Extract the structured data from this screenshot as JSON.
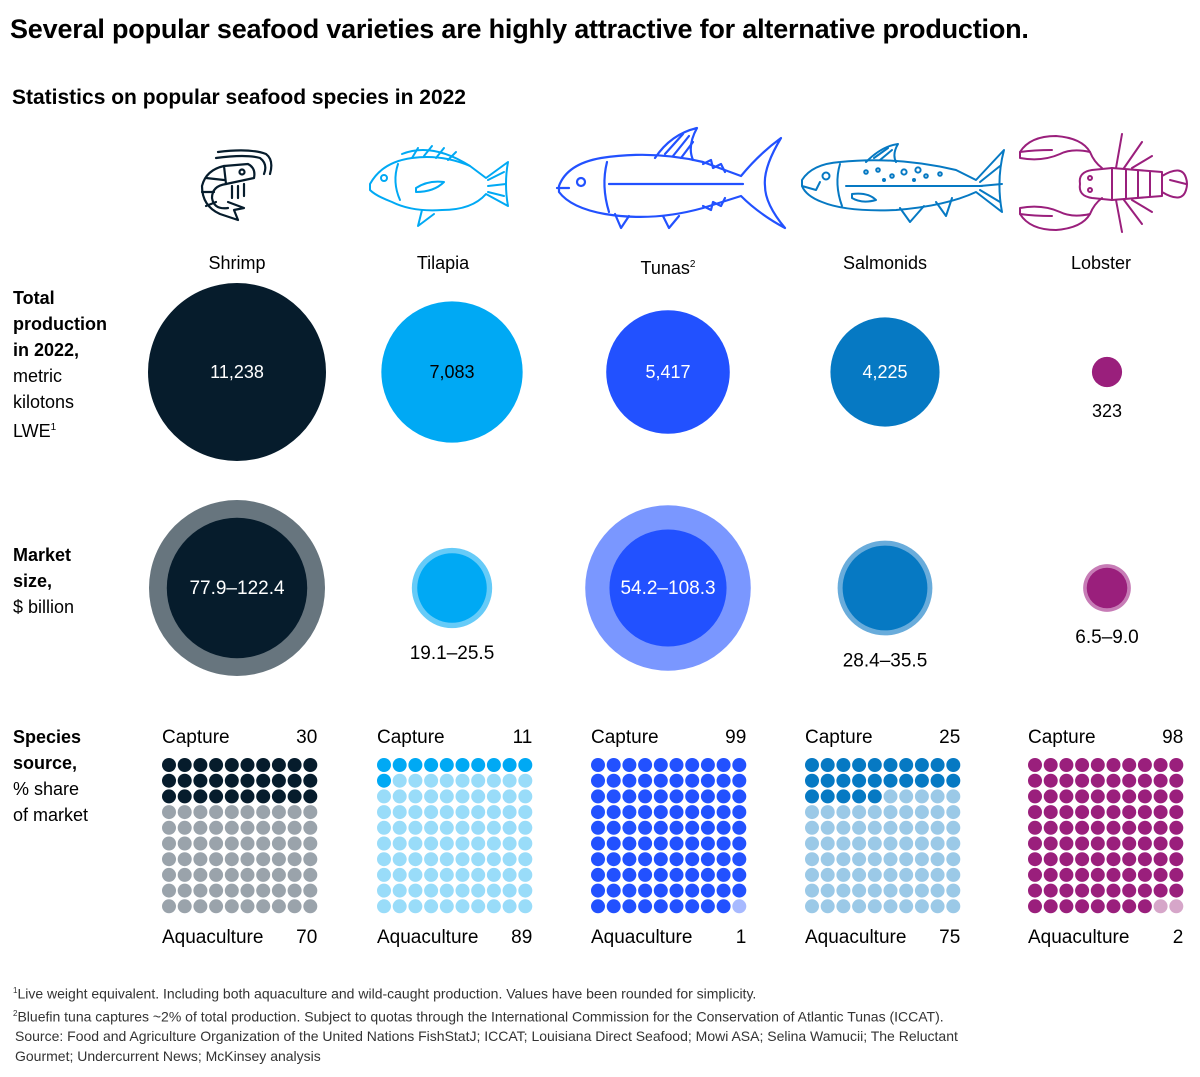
{
  "title": "Several popular seafood varieties are highly attractive for alternative production.",
  "subtitle": "Statistics on popular seafood species in 2022",
  "row_labels": {
    "production": {
      "bold": [
        "Total",
        "production",
        "in 2022,"
      ],
      "normal": [
        "metric",
        "kilotons",
        "LWE"
      ],
      "sup": "1"
    },
    "market": {
      "bold": [
        "Market",
        "size,"
      ],
      "normal": [
        "$ billion"
      ]
    },
    "source": {
      "bold": [
        "Species",
        "source,"
      ],
      "normal": [
        "% share",
        "of market"
      ]
    }
  },
  "waffle_labels": {
    "capture": "Capture",
    "aquaculture": "Aquaculture"
  },
  "chart_data": {
    "type": "bubble-and-waffle",
    "title": "Statistics on popular seafood species in 2022",
    "species": [
      {
        "name": "Shrimp",
        "sup": "",
        "icon": "shrimp-icon",
        "color": "#061c2c",
        "light_color": "#9aa3ab",
        "market_ring_color": "#67757e",
        "production_kt": 11238,
        "production_label": "11,238",
        "production_label_inside": true,
        "market_low": 77.9,
        "market_high": 122.4,
        "market_label": "77.9–122.4",
        "market_label_inside": true,
        "capture_pct": 30,
        "aquaculture_pct": 70
      },
      {
        "name": "Tilapia",
        "sup": "",
        "icon": "tilapia-icon",
        "color": "#00a9f4",
        "light_color": "#99dcf9",
        "market_ring_color": "#66cbf8",
        "production_kt": 7083,
        "production_label": "7,083",
        "production_label_inside": true,
        "market_low": 19.1,
        "market_high": 25.5,
        "market_label": "19.1–25.5",
        "market_label_inside": false,
        "capture_pct": 11,
        "aquaculture_pct": 89
      },
      {
        "name": "Tunas",
        "sup": "2",
        "icon": "tuna-icon",
        "color": "#2251ff",
        "light_color": "#a7b9ff",
        "market_ring_color": "#7a97ff",
        "production_kt": 5417,
        "production_label": "5,417",
        "production_label_inside": true,
        "market_low": 54.2,
        "market_high": 108.3,
        "market_label": "54.2–108.3",
        "market_label_inside": true,
        "capture_pct": 99,
        "aquaculture_pct": 1
      },
      {
        "name": "Salmonids",
        "sup": "",
        "icon": "salmon-icon",
        "color": "#0679c3",
        "light_color": "#9bc9e7",
        "market_ring_color": "#69acdb",
        "production_kt": 4225,
        "production_label": "4,225",
        "production_label_inside": true,
        "market_low": 28.4,
        "market_high": 35.5,
        "market_label": "28.4–35.5",
        "market_label_inside": false,
        "capture_pct": 25,
        "aquaculture_pct": 75
      },
      {
        "name": "Lobster",
        "sup": "",
        "icon": "lobster-icon",
        "color": "#9a1f7c",
        "light_color": "#d6a6c9",
        "market_ring_color": "#c77cb6",
        "production_kt": 323,
        "production_label": "323",
        "production_label_inside": false,
        "market_low": 6.5,
        "market_high": 9.0,
        "market_label": "6.5–9.0",
        "market_label_inside": false,
        "capture_pct": 98,
        "aquaculture_pct": 2
      }
    ]
  },
  "footnotes": [
    {
      "sup": "1",
      "text": "Live weight equivalent. Including both aquaculture and wild-caught production. Values have been rounded for simplicity."
    },
    {
      "sup": "2",
      "text": "Bluefin tuna captures ~2% of total production. Subject to quotas through the International Commission for the Conservation of Atlantic Tunas (ICCAT)."
    }
  ],
  "source": [
    "Source: Food and Agriculture Organization of the United Nations FishStatJ; ICCAT; Louisiana Direct Seafood; Mowi ASA; Selina Wamucii; The Reluctant",
    "Gourmet; Undercurrent News; McKinsey analysis"
  ]
}
